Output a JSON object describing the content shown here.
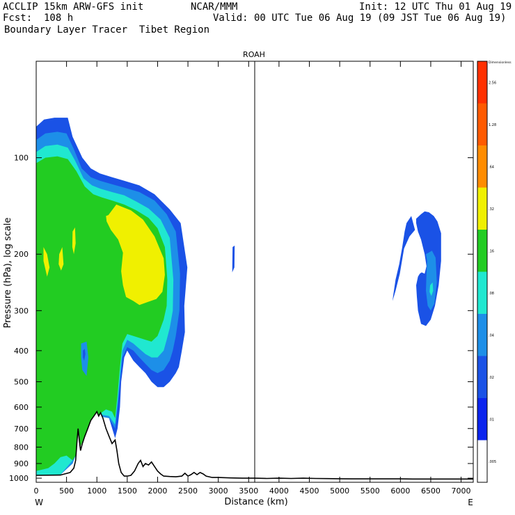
{
  "header": {
    "model": "ACCLIP 15km ARW-GFS init",
    "org": "NCAR/MMM",
    "init": "Init: 12 UTC Thu 01 Aug 19",
    "fcst": "Fcst:  108 h",
    "valid": "Valid: 00 UTC Tue 06 Aug 19 (09 JST Tue 06 Aug 19)",
    "field": "Boundary Layer Tracer  Tibet Region"
  },
  "chart_data": {
    "type": "heatmap",
    "title": "ROAH",
    "xlabel": "Distance (km)",
    "ylabel": "Pressure (hPa), log scale",
    "x_start_label": "W",
    "x_end_label": "E",
    "xlim": [
      0,
      7200
    ],
    "ylim": [
      1030,
      50
    ],
    "y_scale": "log",
    "x_ticks": [
      0,
      500,
      1000,
      1500,
      2000,
      2500,
      3000,
      3500,
      4000,
      4500,
      5000,
      5500,
      6000,
      6500,
      7000
    ],
    "x_tick_labels": [
      "0",
      "500",
      "1000",
      "1500",
      "2000",
      "2500",
      "3000",
      "3500",
      "4000",
      "4500",
      "5000",
      "5500",
      "6000",
      "6500",
      "7000"
    ],
    "y_ticks": [
      100,
      200,
      300,
      400,
      500,
      600,
      700,
      800,
      900,
      1000
    ],
    "y_tick_labels": [
      "100",
      "200",
      "300",
      "400",
      "500",
      "600",
      "700",
      "800",
      "900",
      "1000"
    ],
    "vertical_line_x": 3600,
    "colorbar": {
      "labels": [
        ".005",
        ".01",
        ".02",
        ".04",
        ".08",
        ".16",
        ".32",
        ".64",
        "1.28",
        "2.56",
        "Dimensionless"
      ],
      "colors": [
        "#ffffff",
        "#0b24ee",
        "#1a52e6",
        "#1d8fe8",
        "#20e8d0",
        "#22cc22",
        "#f0f000",
        "#ff8c00",
        "#ff5a00",
        "#ff3000"
      ]
    },
    "terrain": {
      "x": [
        0,
        400,
        560,
        620,
        650,
        670,
        690,
        710,
        730,
        760,
        800,
        850,
        900,
        950,
        1000,
        1030,
        1060,
        1100,
        1150,
        1200,
        1250,
        1300,
        1330,
        1360,
        1400,
        1450,
        1500,
        1560,
        1620,
        1680,
        1720,
        1760,
        1800,
        1850,
        1900,
        1950,
        2000,
        2050,
        2100,
        2200,
        2300,
        2400,
        2450,
        2500,
        2550,
        2600,
        2650,
        2700,
        2750,
        2800,
        2850,
        2900,
        3000,
        3200,
        3400,
        3600,
        3800,
        4000,
        4200,
        4400,
        4600,
        4800,
        5000,
        5200,
        5400,
        5600,
        5800,
        6000,
        6200,
        6400,
        6600,
        6800,
        7000,
        7200
      ],
      "p": [
        980,
        978,
        960,
        930,
        880,
        780,
        700,
        760,
        820,
        780,
        740,
        700,
        660,
        640,
        620,
        640,
        625,
        650,
        700,
        740,
        780,
        760,
        820,
        900,
        960,
        985,
        985,
        980,
        950,
        900,
        880,
        920,
        900,
        910,
        890,
        920,
        950,
        970,
        985,
        988,
        990,
        985,
        965,
        985,
        975,
        960,
        975,
        960,
        970,
        985,
        990,
        995,
        995,
        998,
        1000,
        1000,
        1002,
        1000,
        1002,
        1000,
        1002,
        1003,
        1004,
        1005,
        1005,
        1005,
        1005,
        1005,
        1006,
        1006,
        1006,
        1006,
        1006,
        1006
      ]
    },
    "regions": [
      {
        "level": 2,
        "x": [
          0,
          130,
          300,
          520,
          600,
          760,
          900,
          1050,
          1250,
          1450,
          1700,
          1950,
          2200,
          2380,
          2490,
          2440,
          2450,
          2400,
          2350,
          2300,
          2200,
          2100,
          2000,
          1900,
          1800,
          1700,
          1600,
          1500,
          1450,
          1400,
          1380,
          1340,
          1300,
          1200,
          1000,
          800,
          600,
          400,
          200,
          0
        ],
        "p": [
          80,
          76,
          75,
          75,
          86,
          100,
          108,
          112,
          115,
          118,
          122,
          130,
          145,
          160,
          220,
          290,
          350,
          400,
          450,
          470,
          500,
          520,
          520,
          500,
          470,
          450,
          430,
          400,
          420,
          500,
          600,
          700,
          750,
          650,
          620,
          700,
          900,
          975,
          978,
          980
        ]
      },
      {
        "level": 3,
        "x": [
          0,
          150,
          350,
          500,
          620,
          750,
          900,
          1050,
          1250,
          1450,
          1700,
          1950,
          2150,
          2300,
          2370,
          2360,
          2300,
          2250,
          2200,
          2100,
          2000,
          1900,
          1800,
          1700,
          1600,
          1500,
          1420,
          1380,
          1340,
          1300,
          1200,
          1000,
          800,
          600,
          400,
          200,
          0
        ],
        "p": [
          88,
          84,
          83,
          84,
          94,
          108,
          115,
          118,
          121,
          124,
          128,
          136,
          150,
          170,
          230,
          300,
          360,
          400,
          430,
          460,
          470,
          460,
          440,
          420,
          400,
          390,
          420,
          500,
          600,
          700,
          650,
          640,
          720,
          900,
          975,
          978,
          980
        ]
      },
      {
        "level": 4,
        "x": [
          0,
          150,
          350,
          520,
          640,
          780,
          920,
          1060,
          1250,
          1450,
          1650,
          1850,
          2050,
          2200,
          2260,
          2250,
          2200,
          2150,
          2100,
          2000,
          1900,
          1800,
          1700,
          1600,
          1500,
          1420,
          1380,
          1340,
          1300,
          1200,
          1000,
          800,
          600,
          400,
          200,
          0
        ],
        "p": [
          96,
          92,
          91,
          93,
          102,
          116,
          122,
          125,
          128,
          131,
          137,
          144,
          156,
          178,
          240,
          300,
          340,
          370,
          400,
          420,
          420,
          410,
          395,
          380,
          370,
          400,
          480,
          580,
          680,
          640,
          630,
          700,
          880,
          975,
          978,
          980
        ]
      },
      {
        "level": 5,
        "x": [
          0,
          150,
          350,
          520,
          660,
          800,
          940,
          1080,
          1250,
          1450,
          1650,
          1850,
          2000,
          2120,
          2160,
          2150,
          2100,
          2050,
          2000,
          1900,
          1800,
          1700,
          1600,
          1500,
          1420,
          1380,
          1340,
          1300,
          1250,
          1150,
          1000,
          850,
          700,
          600,
          500,
          400,
          300,
          200,
          100,
          0
        ],
        "p": [
          104,
          100,
          99,
          101,
          110,
          123,
          130,
          133,
          136,
          140,
          146,
          154,
          166,
          190,
          240,
          290,
          320,
          340,
          360,
          375,
          370,
          365,
          360,
          355,
          380,
          450,
          550,
          650,
          620,
          610,
          640,
          700,
          820,
          880,
          850,
          860,
          900,
          930,
          940,
          950
        ]
      }
    ],
    "blobs": [
      {
        "level": 6,
        "x": [
          1190,
          1320,
          1560,
          1760,
          1950,
          2100,
          2120,
          2080,
          1980,
          1840,
          1700,
          1600,
          1480,
          1430,
          1400,
          1430,
          1350,
          1230,
          1160,
          1150
        ],
        "p": [
          151,
          140,
          146,
          156,
          176,
          206,
          232,
          262,
          276,
          282,
          288,
          280,
          272,
          250,
          226,
          198,
          180,
          168,
          158,
          152
        ]
      },
      {
        "level": 6,
        "x": [
          120,
          180,
          220,
          180,
          120
        ],
        "p": [
          190,
          200,
          220,
          235,
          210
        ]
      },
      {
        "level": 6,
        "x": [
          380,
          430,
          450,
          410,
          370
        ],
        "p": [
          200,
          190,
          215,
          225,
          215
        ]
      },
      {
        "level": 6,
        "x": [
          600,
          640,
          650,
          620,
          595
        ],
        "p": [
          170,
          165,
          185,
          200,
          190
        ]
      },
      {
        "level": 3,
        "x": [
          740,
          830,
          860,
          830,
          760,
          740
        ],
        "p": [
          380,
          375,
          420,
          480,
          460,
          420
        ]
      },
      {
        "level": 2,
        "x": [
          770,
          800,
          810,
          790,
          770
        ],
        "p": [
          400,
          395,
          410,
          430,
          420
        ]
      },
      {
        "level": 2,
        "x": [
          3235,
          3270,
          3265,
          3230
        ],
        "p": [
          190,
          188,
          220,
          228
        ]
      },
      {
        "level": 2,
        "x": [
          6100,
          6180,
          6240,
          6150,
          6060,
          5990,
          5920,
          5870,
          5880,
          5920,
          5980,
          6030,
          6070
        ],
        "p": [
          160,
          152,
          168,
          176,
          192,
          230,
          260,
          280,
          270,
          240,
          215,
          190,
          170
        ]
      },
      {
        "level": 2,
        "x": [
          6260,
          6340,
          6400,
          6470,
          6550,
          6610,
          6670,
          6670,
          6630,
          6570,
          6500,
          6420,
          6340,
          6290,
          6270,
          6260,
          6290,
          6320,
          6350,
          6400,
          6430,
          6400,
          6340,
          6290,
          6260
        ],
        "p": [
          155,
          150,
          147,
          148,
          152,
          158,
          172,
          210,
          250,
          290,
          320,
          335,
          330,
          300,
          270,
          250,
          235,
          230,
          228,
          230,
          218,
          200,
          180,
          170,
          160
        ]
      },
      {
        "level": 3,
        "x": [
          6420,
          6520,
          6580,
          6600,
          6560,
          6500,
          6450,
          6420,
          6430,
          6440
        ],
        "p": [
          200,
          195,
          205,
          245,
          285,
          300,
          290,
          260,
          230,
          210
        ]
      },
      {
        "level": 4,
        "x": [
          6490,
          6530,
          6540,
          6510,
          6480
        ],
        "p": [
          250,
          245,
          260,
          270,
          262
        ]
      }
    ]
  }
}
